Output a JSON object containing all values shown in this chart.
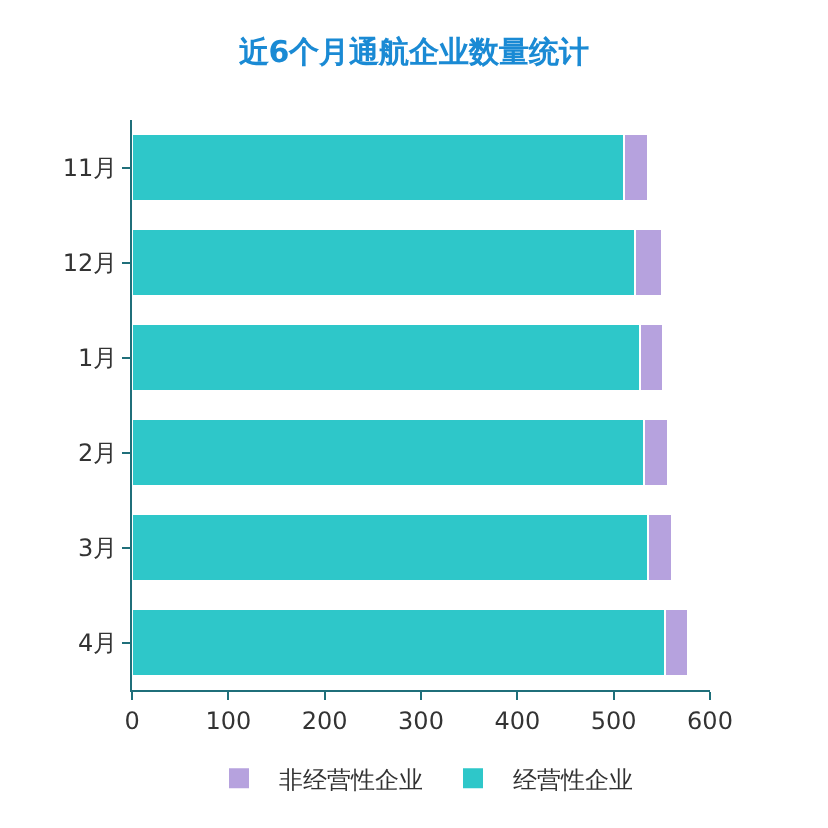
{
  "chart_data": {
    "type": "bar",
    "title": "近6个月通航企业数量统计",
    "orientation": "horizontal",
    "stacked": true,
    "categories": [
      "11月",
      "12月",
      "1月",
      "2月",
      "3月",
      "4月"
    ],
    "series": [
      {
        "name": "经营性企业",
        "color": "#2ec7c9",
        "values": [
          511,
          522,
          527,
          531,
          536,
          553
        ]
      },
      {
        "name": "非经营性企业",
        "color": "#b6a2de",
        "values": [
          25,
          28,
          24,
          25,
          25,
          24
        ]
      }
    ],
    "xlim": [
      0,
      600
    ],
    "xticks": [
      0,
      100,
      200,
      300,
      400,
      500,
      600
    ],
    "grid": false,
    "legend": "bottom"
  }
}
